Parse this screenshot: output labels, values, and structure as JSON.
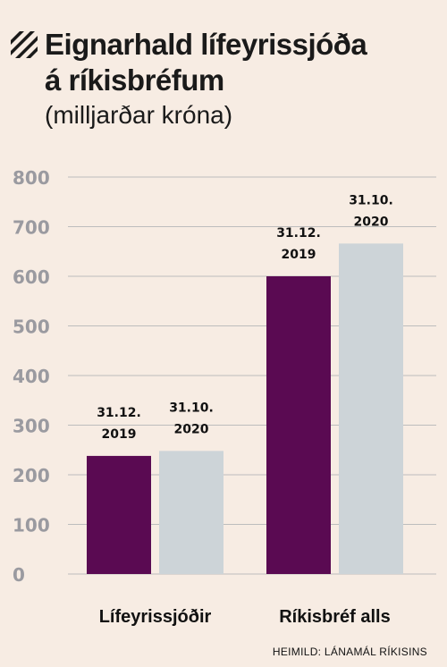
{
  "header": {
    "title_line1": "Eignarhald lífeyrissjóða",
    "title_line2": "á ríkisbréfum",
    "subtitle": "(milljarðar króna)"
  },
  "source": "HEIMILD: LÁNAMÁL RÍKISINS",
  "colors": {
    "background": "#f7ece3",
    "series_2019": "#5a0a52",
    "series_2020": "#cdd4d8",
    "gridline": "#bdbdbd",
    "tick_text": "#9a9aa0"
  },
  "chart_data": {
    "type": "bar",
    "categories": [
      "Lífeyrissjóðir",
      "Ríkisbréf alls"
    ],
    "series": [
      {
        "name": "31.12. 2019",
        "values": [
          238,
          600
        ]
      },
      {
        "name": "31.10. 2020",
        "values": [
          248,
          666
        ]
      }
    ],
    "bar_labels": [
      [
        "31.12.",
        "2019"
      ],
      [
        "31.10.",
        "2020"
      ]
    ],
    "yticks": [
      0,
      100,
      200,
      300,
      400,
      500,
      600,
      700,
      800
    ],
    "ylim": [
      0,
      800
    ],
    "grid": true,
    "title": "Eignarhald lífeyrissjóða á ríkisbréfum",
    "ylabel": "(milljarðar króna)",
    "xlabel": ""
  }
}
